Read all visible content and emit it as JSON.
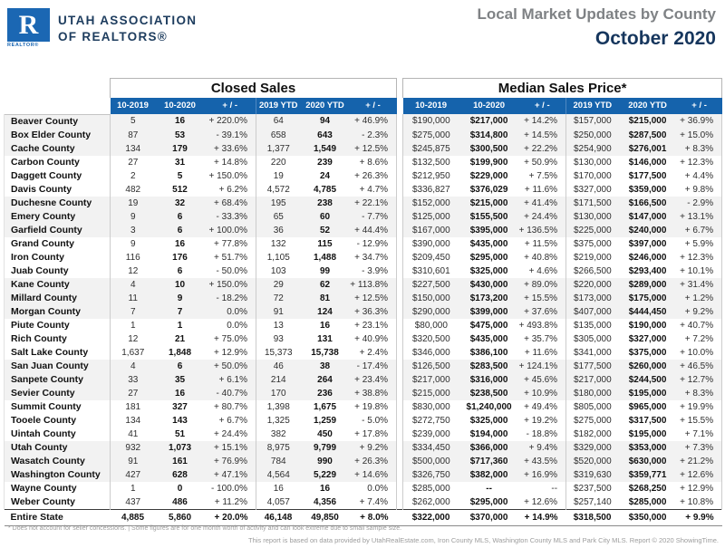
{
  "header": {
    "logo": {
      "letter": "R",
      "realtor_label": "REALTOR®",
      "org_line1": "UTAH ASSOCIATION",
      "org_line2": "OF REALTORS®"
    },
    "title": "Local Market Updates by County",
    "subtitle": "October 2020"
  },
  "colors": {
    "accent_blue": "#1563ac",
    "logo_blue": "#1b67b3",
    "navy": "#16365d",
    "title_gray": "#7f8285",
    "row_stripe": "#f2f2f2"
  },
  "table": {
    "sections": [
      {
        "label": "Closed Sales"
      },
      {
        "label": "Median Sales Price*"
      }
    ],
    "columns": [
      "10-2019",
      "10-2020",
      "+ / -",
      "2019 YTD",
      "2020 YTD",
      "+ / -"
    ],
    "rows": [
      {
        "county": "Beaver County",
        "closed": [
          "5",
          "16",
          "+ 220.0%",
          "64",
          "94",
          "+ 46.9%"
        ],
        "median": [
          "$190,000",
          "$217,000",
          "+ 14.2%",
          "$157,000",
          "$215,000",
          "+ 36.9%"
        ]
      },
      {
        "county": "Box Elder County",
        "closed": [
          "87",
          "53",
          "- 39.1%",
          "658",
          "643",
          "- 2.3%"
        ],
        "median": [
          "$275,000",
          "$314,800",
          "+ 14.5%",
          "$250,000",
          "$287,500",
          "+ 15.0%"
        ]
      },
      {
        "county": "Cache County",
        "closed": [
          "134",
          "179",
          "+ 33.6%",
          "1,377",
          "1,549",
          "+ 12.5%"
        ],
        "median": [
          "$245,875",
          "$300,500",
          "+ 22.2%",
          "$254,900",
          "$276,001",
          "+ 8.3%"
        ]
      },
      {
        "county": "Carbon County",
        "closed": [
          "27",
          "31",
          "+ 14.8%",
          "220",
          "239",
          "+ 8.6%"
        ],
        "median": [
          "$132,500",
          "$199,900",
          "+ 50.9%",
          "$130,000",
          "$146,000",
          "+ 12.3%"
        ]
      },
      {
        "county": "Daggett County",
        "closed": [
          "2",
          "5",
          "+ 150.0%",
          "19",
          "24",
          "+ 26.3%"
        ],
        "median": [
          "$212,950",
          "$229,000",
          "+ 7.5%",
          "$170,000",
          "$177,500",
          "+ 4.4%"
        ]
      },
      {
        "county": "Davis County",
        "closed": [
          "482",
          "512",
          "+ 6.2%",
          "4,572",
          "4,785",
          "+ 4.7%"
        ],
        "median": [
          "$336,827",
          "$376,029",
          "+ 11.6%",
          "$327,000",
          "$359,000",
          "+ 9.8%"
        ]
      },
      {
        "county": "Duchesne County",
        "closed": [
          "19",
          "32",
          "+ 68.4%",
          "195",
          "238",
          "+ 22.1%"
        ],
        "median": [
          "$152,000",
          "$215,000",
          "+ 41.4%",
          "$171,500",
          "$166,500",
          "- 2.9%"
        ]
      },
      {
        "county": "Emery County",
        "closed": [
          "9",
          "6",
          "- 33.3%",
          "65",
          "60",
          "- 7.7%"
        ],
        "median": [
          "$125,000",
          "$155,500",
          "+ 24.4%",
          "$130,000",
          "$147,000",
          "+ 13.1%"
        ]
      },
      {
        "county": "Garfield County",
        "closed": [
          "3",
          "6",
          "+ 100.0%",
          "36",
          "52",
          "+ 44.4%"
        ],
        "median": [
          "$167,000",
          "$395,000",
          "+ 136.5%",
          "$225,000",
          "$240,000",
          "+ 6.7%"
        ]
      },
      {
        "county": "Grand County",
        "closed": [
          "9",
          "16",
          "+ 77.8%",
          "132",
          "115",
          "- 12.9%"
        ],
        "median": [
          "$390,000",
          "$435,000",
          "+ 11.5%",
          "$375,000",
          "$397,000",
          "+ 5.9%"
        ]
      },
      {
        "county": "Iron County",
        "closed": [
          "116",
          "176",
          "+ 51.7%",
          "1,105",
          "1,488",
          "+ 34.7%"
        ],
        "median": [
          "$209,450",
          "$295,000",
          "+ 40.8%",
          "$219,000",
          "$246,000",
          "+ 12.3%"
        ]
      },
      {
        "county": "Juab County",
        "closed": [
          "12",
          "6",
          "- 50.0%",
          "103",
          "99",
          "- 3.9%"
        ],
        "median": [
          "$310,601",
          "$325,000",
          "+ 4.6%",
          "$266,500",
          "$293,400",
          "+ 10.1%"
        ]
      },
      {
        "county": "Kane County",
        "closed": [
          "4",
          "10",
          "+ 150.0%",
          "29",
          "62",
          "+ 113.8%"
        ],
        "median": [
          "$227,500",
          "$430,000",
          "+ 89.0%",
          "$220,000",
          "$289,000",
          "+ 31.4%"
        ]
      },
      {
        "county": "Millard County",
        "closed": [
          "11",
          "9",
          "- 18.2%",
          "72",
          "81",
          "+ 12.5%"
        ],
        "median": [
          "$150,000",
          "$173,200",
          "+ 15.5%",
          "$173,000",
          "$175,000",
          "+ 1.2%"
        ]
      },
      {
        "county": "Morgan County",
        "closed": [
          "7",
          "7",
          "0.0%",
          "91",
          "124",
          "+ 36.3%"
        ],
        "median": [
          "$290,000",
          "$399,000",
          "+ 37.6%",
          "$407,000",
          "$444,450",
          "+ 9.2%"
        ]
      },
      {
        "county": "Piute County",
        "closed": [
          "1",
          "1",
          "0.0%",
          "13",
          "16",
          "+ 23.1%"
        ],
        "median": [
          "$80,000",
          "$475,000",
          "+ 493.8%",
          "$135,000",
          "$190,000",
          "+ 40.7%"
        ]
      },
      {
        "county": "Rich County",
        "closed": [
          "12",
          "21",
          "+ 75.0%",
          "93",
          "131",
          "+ 40.9%"
        ],
        "median": [
          "$320,500",
          "$435,000",
          "+ 35.7%",
          "$305,000",
          "$327,000",
          "+ 7.2%"
        ]
      },
      {
        "county": "Salt Lake County",
        "closed": [
          "1,637",
          "1,848",
          "+ 12.9%",
          "15,373",
          "15,738",
          "+ 2.4%"
        ],
        "median": [
          "$346,000",
          "$386,100",
          "+ 11.6%",
          "$341,000",
          "$375,000",
          "+ 10.0%"
        ]
      },
      {
        "county": "San Juan County",
        "closed": [
          "4",
          "6",
          "+ 50.0%",
          "46",
          "38",
          "- 17.4%"
        ],
        "median": [
          "$126,500",
          "$283,500",
          "+ 124.1%",
          "$177,500",
          "$260,000",
          "+ 46.5%"
        ]
      },
      {
        "county": "Sanpete County",
        "closed": [
          "33",
          "35",
          "+ 6.1%",
          "214",
          "264",
          "+ 23.4%"
        ],
        "median": [
          "$217,000",
          "$316,000",
          "+ 45.6%",
          "$217,000",
          "$244,500",
          "+ 12.7%"
        ]
      },
      {
        "county": "Sevier County",
        "closed": [
          "27",
          "16",
          "- 40.7%",
          "170",
          "236",
          "+ 38.8%"
        ],
        "median": [
          "$215,000",
          "$238,500",
          "+ 10.9%",
          "$180,000",
          "$195,000",
          "+ 8.3%"
        ]
      },
      {
        "county": "Summit County",
        "closed": [
          "181",
          "327",
          "+ 80.7%",
          "1,398",
          "1,675",
          "+ 19.8%"
        ],
        "median": [
          "$830,000",
          "$1,240,000",
          "+ 49.4%",
          "$805,000",
          "$965,000",
          "+ 19.9%"
        ]
      },
      {
        "county": "Tooele County",
        "closed": [
          "134",
          "143",
          "+ 6.7%",
          "1,325",
          "1,259",
          "- 5.0%"
        ],
        "median": [
          "$272,750",
          "$325,000",
          "+ 19.2%",
          "$275,000",
          "$317,500",
          "+ 15.5%"
        ]
      },
      {
        "county": "Uintah County",
        "closed": [
          "41",
          "51",
          "+ 24.4%",
          "382",
          "450",
          "+ 17.8%"
        ],
        "median": [
          "$239,000",
          "$194,000",
          "- 18.8%",
          "$182,000",
          "$195,000",
          "+ 7.1%"
        ]
      },
      {
        "county": "Utah County",
        "closed": [
          "932",
          "1,073",
          "+ 15.1%",
          "8,975",
          "9,799",
          "+ 9.2%"
        ],
        "median": [
          "$334,450",
          "$366,000",
          "+ 9.4%",
          "$329,000",
          "$353,000",
          "+ 7.3%"
        ]
      },
      {
        "county": "Wasatch County",
        "closed": [
          "91",
          "161",
          "+ 76.9%",
          "784",
          "990",
          "+ 26.3%"
        ],
        "median": [
          "$500,000",
          "$717,360",
          "+ 43.5%",
          "$520,000",
          "$630,000",
          "+ 21.2%"
        ]
      },
      {
        "county": "Washington County",
        "closed": [
          "427",
          "628",
          "+ 47.1%",
          "4,564",
          "5,229",
          "+ 14.6%"
        ],
        "median": [
          "$326,750",
          "$382,000",
          "+ 16.9%",
          "$319,630",
          "$359,771",
          "+ 12.6%"
        ]
      },
      {
        "county": "Wayne County",
        "closed": [
          "1",
          "0",
          "- 100.0%",
          "16",
          "16",
          "0.0%"
        ],
        "median": [
          "$285,000",
          "--",
          "--",
          "$237,500",
          "$268,250",
          "+ 12.9%"
        ]
      },
      {
        "county": "Weber County",
        "closed": [
          "437",
          "486",
          "+ 11.2%",
          "4,057",
          "4,356",
          "+ 7.4%"
        ],
        "median": [
          "$262,000",
          "$295,000",
          "+ 12.6%",
          "$257,140",
          "$285,000",
          "+ 10.8%"
        ]
      }
    ],
    "total_row": {
      "county": "Entire State",
      "closed": [
        "4,885",
        "5,860",
        "+ 20.0%",
        "46,148",
        "49,850",
        "+ 8.0%"
      ],
      "median": [
        "$322,000",
        "$370,000",
        "+ 14.9%",
        "$318,500",
        "$350,000",
        "+ 9.9%"
      ]
    }
  },
  "footer": {
    "footnote": "* Does not account for seller concessions. | Some figures are for one month worth of activity and can look extreme due to small sample size.",
    "credit": "This report is based on data provided by UtahRealEstate.com, Iron County MLS, Washington County MLS and Park City MLS. Report © 2020 ShowingTime."
  }
}
